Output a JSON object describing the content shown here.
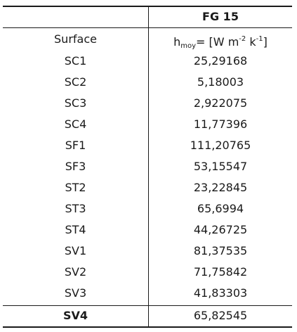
{
  "header": {
    "column_group": "FG 15"
  },
  "subheader": {
    "surface_label": "Surface",
    "h_symbol": "h",
    "h_subscript": "moy",
    "unit_prefix": "= [W m",
    "unit_exp1": "-2",
    "unit_mid": " k",
    "unit_exp2": "-1",
    "unit_suffix": "]"
  },
  "rows": [
    {
      "surface": "SC1",
      "value": "25,29168"
    },
    {
      "surface": "SC2",
      "value": "5,18003"
    },
    {
      "surface": "SC3",
      "value": "2,922075"
    },
    {
      "surface": "SC4",
      "value": "11,77396"
    },
    {
      "surface": "SF1",
      "value": "111,20765"
    },
    {
      "surface": "SF3",
      "value": "53,15547"
    },
    {
      "surface": "ST2",
      "value": "23,22845"
    },
    {
      "surface": "ST3",
      "value": "65,6994"
    },
    {
      "surface": "ST4",
      "value": "44,26725"
    },
    {
      "surface": "SV1",
      "value": "81,37535"
    },
    {
      "surface": "SV2",
      "value": "71,75842"
    },
    {
      "surface": "SV3",
      "value": "41,83303"
    },
    {
      "surface": "SV4",
      "value": "65,82545"
    }
  ]
}
